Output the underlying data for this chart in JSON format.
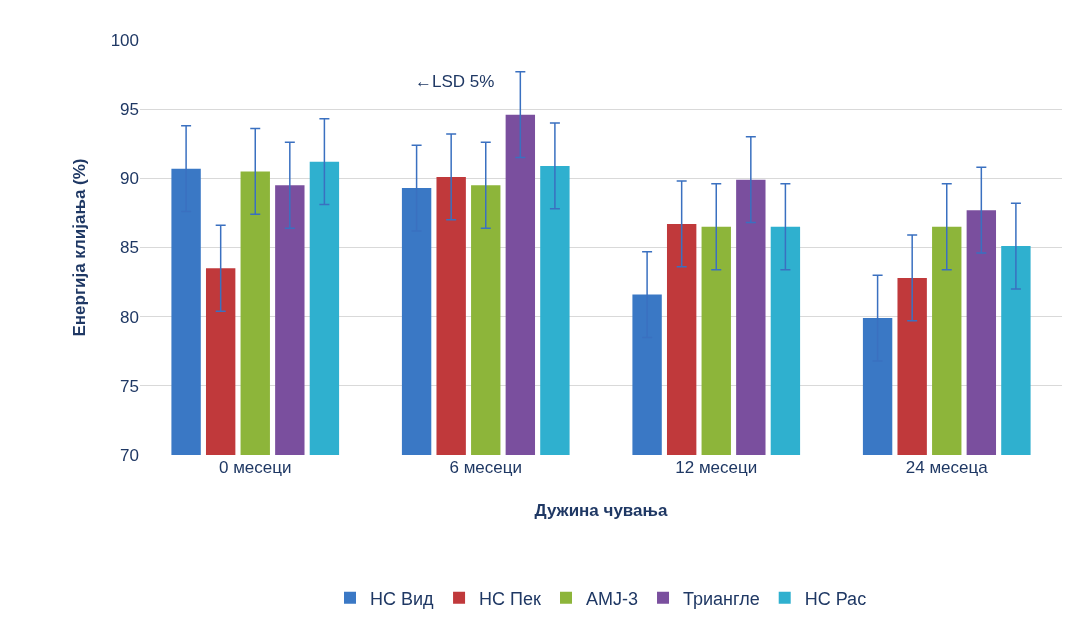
{
  "chart_data": {
    "type": "bar",
    "xlabel": "Дужина чувања",
    "ylabel": "Енергија клијања (%)",
    "categories": [
      "0 месеци",
      "6 месеци",
      "12 месеци",
      "24 месеца"
    ],
    "series": [
      {
        "name": "НС Вид",
        "color": "#3a78c5",
        "values": [
          90.7,
          89.3,
          81.6,
          79.9
        ],
        "errors": [
          3.1,
          3.1,
          3.1,
          3.1
        ]
      },
      {
        "name": "НС Пек",
        "color": "#c0393b",
        "values": [
          83.5,
          90.1,
          86.7,
          82.8
        ],
        "errors": [
          3.1,
          3.1,
          3.1,
          3.1
        ]
      },
      {
        "name": "AMJ-3",
        "color": "#8db53a",
        "values": [
          90.5,
          89.5,
          86.5,
          86.5
        ],
        "errors": [
          3.1,
          3.1,
          3.1,
          3.1
        ]
      },
      {
        "name": "Триангле",
        "color": "#7a4f9e",
        "values": [
          89.5,
          94.6,
          89.9,
          87.7
        ],
        "errors": [
          3.1,
          3.1,
          3.1,
          3.1
        ]
      },
      {
        "name": "НС Рас",
        "color": "#2fb0cf",
        "values": [
          91.2,
          90.9,
          86.5,
          85.1
        ],
        "errors": [
          3.1,
          3.1,
          3.1,
          3.1
        ]
      }
    ],
    "annotations": [
      "←LSD 5%"
    ],
    "ylim": [
      70,
      100
    ],
    "yticks": [
      70,
      75,
      80,
      85,
      90,
      95,
      100
    ],
    "grid": "y",
    "legend": "bottom"
  }
}
